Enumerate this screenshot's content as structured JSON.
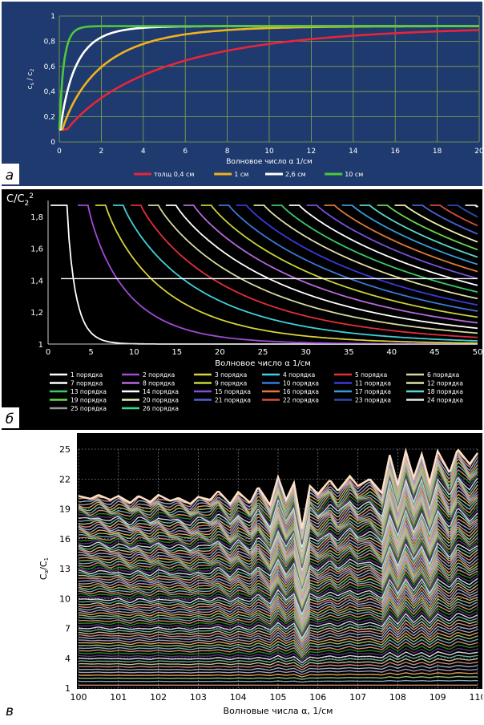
{
  "colors": {
    "bg_a": "#1e3a6e",
    "bg_b": "#000000",
    "bg_c": "#000000",
    "grid_a": "#8ea84a",
    "grid_bc": "#9aa0b4",
    "text": "#ffffff",
    "panel_label_bg": "#ffffff",
    "panel_label_fg": "#000000"
  },
  "chart_data": [
    {
      "id": "a",
      "type": "line",
      "panel_label": "а",
      "xlabel": "Волновое число  α  1/см",
      "ylabel_main": "c",
      "ylabel_sub1": "s",
      "ylabel_slash": " / ",
      "ylabel_c2": "c",
      "ylabel_sub2": "2",
      "xlim": [
        0,
        20
      ],
      "ylim": [
        0,
        1
      ],
      "x_ticks": [
        "0",
        "2",
        "4",
        "6",
        "8",
        "10",
        "12",
        "14",
        "16",
        "18",
        "20"
      ],
      "y_ticks": [
        "0",
        "0,2",
        "0,4",
        "0,6",
        "0,8",
        "1"
      ],
      "asymptote": 0.92,
      "grid": true,
      "legend_position": "bottom",
      "series": [
        {
          "name": "толщ 0,4 см",
          "color": "#e8253a",
          "thickness": 0.4
        },
        {
          "name": "1 см",
          "color": "#f2b21e",
          "thickness": 1.0
        },
        {
          "name": "2,6 см",
          "color": "#ffffff",
          "thickness": 2.6
        },
        {
          "name": "10 см",
          "color": "#4fc83a",
          "thickness": 10.0
        }
      ]
    },
    {
      "id": "b",
      "type": "line",
      "panel_label": "б",
      "title_main": "C/C",
      "title_sub": "2",
      "title_sup": "2",
      "xlabel": "Волновое число α 1/см",
      "xlim": [
        0,
        50
      ],
      "ylim": [
        1,
        1.9
      ],
      "x_ticks": [
        "0",
        "5",
        "10",
        "15",
        "20",
        "25",
        "30",
        "35",
        "40",
        "45",
        "50"
      ],
      "y_ticks": [
        "1",
        "1,2",
        "1,4",
        "1,6",
        "1,8"
      ],
      "horizontal_line": 1.41,
      "top_value": 1.87,
      "grid": false,
      "legend_position": "bottom",
      "series": [
        {
          "name": "1 порядка",
          "color": "#ffffff"
        },
        {
          "name": "2 порядка",
          "color": "#a14ad6"
        },
        {
          "name": "3 порядка",
          "color": "#d9d23a"
        },
        {
          "name": "4 порядка",
          "color": "#3fd1d9"
        },
        {
          "name": "5 порядка",
          "color": "#e0303a"
        },
        {
          "name": "6 порядка",
          "color": "#d8d8a0"
        },
        {
          "name": "7 порядка",
          "color": "#ffffff"
        },
        {
          "name": "8 порядка",
          "color": "#b56bd8"
        },
        {
          "name": "9 порядка",
          "color": "#c9d23a"
        },
        {
          "name": "10 порядка",
          "color": "#3a78d8"
        },
        {
          "name": "11 порядка",
          "color": "#3a3ad8"
        },
        {
          "name": "12 порядка",
          "color": "#e0e0a8"
        },
        {
          "name": "13 порядка",
          "color": "#3ac96a"
        },
        {
          "name": "14 порядка",
          "color": "#ffffff"
        },
        {
          "name": "15 порядка",
          "color": "#7a52d8"
        },
        {
          "name": "16 порядка",
          "color": "#e07a3a"
        },
        {
          "name": "17 порядка",
          "color": "#3a9ad8"
        },
        {
          "name": "18 порядка",
          "color": "#5ad8c8"
        },
        {
          "name": "19 порядка",
          "color": "#6ad84a"
        },
        {
          "name": "20 порядка",
          "color": "#f0f0b0"
        },
        {
          "name": "21 порядка",
          "color": "#4a62d8"
        },
        {
          "name": "22 порядка",
          "color": "#d84a4a"
        },
        {
          "name": "23 порядка",
          "color": "#2a4ab0"
        },
        {
          "name": "24 порядка",
          "color": "#e8e8e8"
        },
        {
          "name": "25 порядка",
          "color": "#9a9a9a"
        },
        {
          "name": "26 порядка",
          "color": "#3ad890"
        }
      ]
    },
    {
      "id": "c",
      "type": "line",
      "panel_label": "в",
      "xlabel": "Волновые числа α, 1/см",
      "ylabel_main": "C",
      "ylabel_sub1": "α",
      "ylabel_slash": "/",
      "ylabel_c2": "C",
      "ylabel_sub2": "1",
      "xlim": [
        100,
        110
      ],
      "ylim": [
        1,
        25
      ],
      "x_ticks": [
        "100",
        "101",
        "102",
        "103",
        "104",
        "105",
        "106",
        "107",
        "108",
        "109",
        "110"
      ],
      "y_ticks": [
        "1",
        "4",
        "7",
        "10",
        "13",
        "16",
        "19",
        "22",
        "25"
      ],
      "grid": true,
      "upper_envelope": [
        [
          100,
          20.3
        ],
        [
          100.3,
          20.0
        ],
        [
          100.5,
          20.4
        ],
        [
          100.8,
          19.9
        ],
        [
          101.0,
          20.3
        ],
        [
          101.3,
          19.6
        ],
        [
          101.5,
          20.3
        ],
        [
          101.8,
          19.7
        ],
        [
          102.0,
          20.4
        ],
        [
          102.3,
          19.8
        ],
        [
          102.5,
          20.1
        ],
        [
          102.8,
          19.5
        ],
        [
          103.0,
          20.2
        ],
        [
          103.3,
          19.9
        ],
        [
          103.5,
          20.8
        ],
        [
          103.8,
          19.5
        ],
        [
          104.0,
          20.7
        ],
        [
          104.3,
          19.6
        ],
        [
          104.5,
          21.2
        ],
        [
          104.8,
          19.4
        ],
        [
          105.0,
          22.2
        ],
        [
          105.2,
          19.9
        ],
        [
          105.4,
          21.6
        ],
        [
          105.6,
          17.0
        ],
        [
          105.8,
          21.3
        ],
        [
          106.0,
          20.5
        ],
        [
          106.3,
          21.9
        ],
        [
          106.5,
          20.8
        ],
        [
          106.8,
          22.3
        ],
        [
          107.0,
          21.3
        ],
        [
          107.3,
          22.0
        ],
        [
          107.6,
          20.6
        ],
        [
          107.8,
          24.4
        ],
        [
          108.0,
          21.4
        ],
        [
          108.2,
          24.8
        ],
        [
          108.4,
          22.1
        ],
        [
          108.6,
          24.5
        ],
        [
          108.8,
          21.6
        ],
        [
          109.0,
          24.8
        ],
        [
          109.3,
          22.6
        ],
        [
          109.5,
          25.0
        ],
        [
          109.8,
          23.5
        ],
        [
          110.0,
          24.6
        ]
      ],
      "curve_colors": [
        "#f4a582",
        "#92c5de",
        "#b2df8a",
        "#fdbf6f",
        "#cab2d6",
        "#a6cee3",
        "#fb9a99",
        "#e0e0a0",
        "#80cdc1",
        "#ffffff",
        "#6a3d9a",
        "#33a02c"
      ]
    }
  ]
}
